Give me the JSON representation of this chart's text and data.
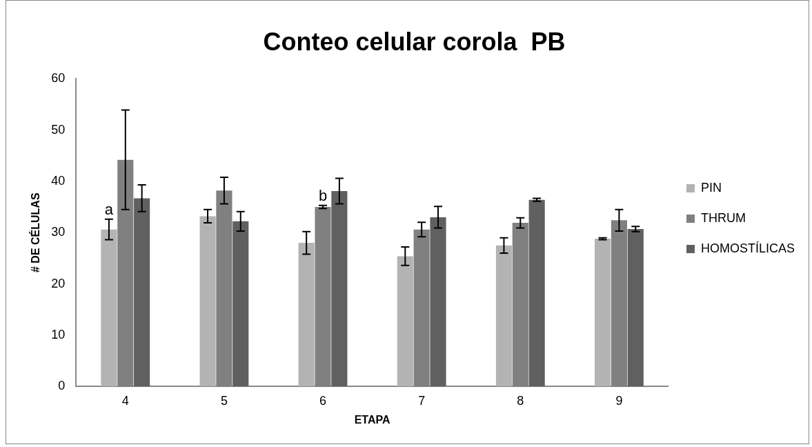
{
  "chart_data": {
    "type": "bar",
    "title": "Conteo celular corola  PB",
    "xlabel": "ETAPA",
    "ylabel": "# DE CÉLULAS",
    "categories": [
      "4",
      "5",
      "6",
      "7",
      "8",
      "9"
    ],
    "series": [
      {
        "name": "PIN",
        "color": "#b3b3b3",
        "values": [
          30.6,
          33.2,
          28,
          25.4,
          27.5,
          28.8
        ],
        "errors": [
          2,
          1.3,
          2.2,
          1.8,
          1.5,
          0.2
        ]
      },
      {
        "name": "THRUM",
        "color": "#808080",
        "values": [
          44.2,
          38.2,
          35,
          30.6,
          31.9,
          32.4
        ],
        "errors": [
          9.7,
          2.6,
          0.3,
          1.4,
          1,
          2.1
        ]
      },
      {
        "name": "HOMOSTÍLICAS",
        "color": "#606060",
        "values": [
          36.7,
          32.2,
          38.1,
          33,
          36.4,
          30.7
        ],
        "errors": [
          2.6,
          1.9,
          2.5,
          2.1,
          0.3,
          0.5
        ]
      }
    ],
    "ylim": [
      0,
      60
    ],
    "yticks": [
      0,
      10,
      20,
      30,
      40,
      50,
      60
    ],
    "grid": false,
    "legend": "right",
    "annotations": [
      "a",
      "b"
    ]
  }
}
